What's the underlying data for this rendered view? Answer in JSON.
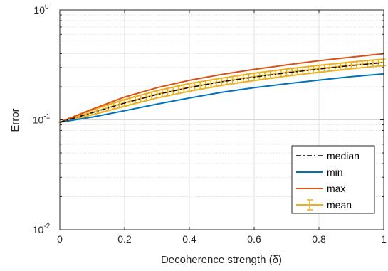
{
  "chart_data": {
    "type": "line",
    "xlabel": "Decoherence strength (δ)",
    "ylabel": "Error",
    "x_ticks": [
      "0",
      "0.2",
      "0.4",
      "0.6",
      "0.8",
      "1"
    ],
    "y_tick_labels": [
      {
        "base": "10",
        "exp": "0",
        "value": 1
      },
      {
        "base": "10",
        "exp": "-1",
        "value": 0.1
      },
      {
        "base": "10",
        "exp": "-2",
        "value": 0.01
      }
    ],
    "xlim": [
      0,
      1
    ],
    "ylim": [
      0.01,
      1
    ],
    "y_scale": "log",
    "grid": true,
    "legend_position": "bottom-right",
    "x": [
      0,
      0.1,
      0.2,
      0.3,
      0.4,
      0.5,
      0.6,
      0.7,
      0.8,
      0.9,
      1.0
    ],
    "series": [
      {
        "name": "median",
        "color": "#000000",
        "style": "dashdot",
        "values": [
          0.095,
          0.116,
          0.142,
          0.17,
          0.197,
          0.222,
          0.245,
          0.268,
          0.29,
          0.312,
          0.332
        ]
      },
      {
        "name": "min",
        "color": "#0072BD",
        "style": "solid",
        "values": [
          0.095,
          0.106,
          0.121,
          0.139,
          0.158,
          0.178,
          0.196,
          0.213,
          0.23,
          0.247,
          0.262
        ]
      },
      {
        "name": "max",
        "color": "#D95319",
        "style": "solid",
        "values": [
          0.095,
          0.125,
          0.161,
          0.196,
          0.229,
          0.259,
          0.288,
          0.316,
          0.345,
          0.372,
          0.4
        ]
      },
      {
        "name": "mean",
        "color": "#EDB120",
        "style": "errorbar",
        "values": [
          0.095,
          0.117,
          0.143,
          0.171,
          0.198,
          0.223,
          0.247,
          0.27,
          0.292,
          0.314,
          0.334
        ],
        "err_low": [
          0.095,
          0.111,
          0.133,
          0.158,
          0.182,
          0.206,
          0.228,
          0.25,
          0.271,
          0.292,
          0.311
        ],
        "err_high": [
          0.095,
          0.123,
          0.153,
          0.184,
          0.214,
          0.24,
          0.266,
          0.29,
          0.313,
          0.336,
          0.357
        ]
      }
    ]
  }
}
